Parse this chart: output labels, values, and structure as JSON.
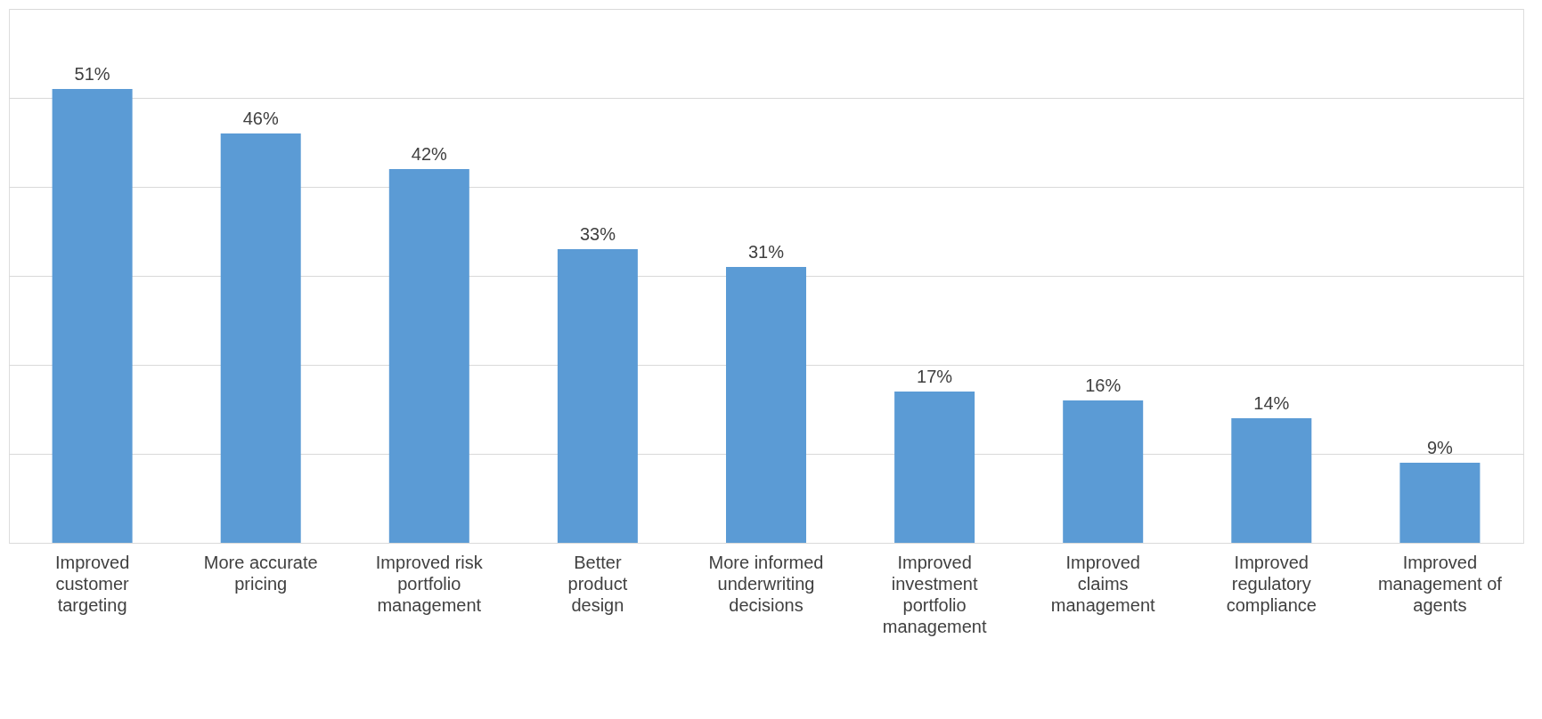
{
  "chart_data": {
    "type": "bar",
    "categories": [
      "Improved customer targeting",
      "More accurate pricing",
      "Improved risk portfolio management",
      "Better product design",
      "More informed underwriting decisions",
      "Improved investment portfolio management",
      "Improved claims management",
      "Improved regulatory compliance",
      "Improved management of agents"
    ],
    "values": [
      51,
      46,
      42,
      33,
      31,
      17,
      16,
      14,
      9
    ],
    "value_labels": [
      "51%",
      "46%",
      "42%",
      "33%",
      "31%",
      "17%",
      "16%",
      "14%",
      "9%"
    ],
    "color": "#5b9bd5",
    "ylim": [
      0,
      60
    ],
    "yticks": [
      {
        "value": 0,
        "label": null
      },
      {
        "value": 10,
        "label": null
      },
      {
        "value": 20,
        "label": null
      },
      {
        "value": 30,
        "label": null
      },
      {
        "value": 40,
        "label": null
      },
      {
        "value": 50,
        "label": null
      },
      {
        "value": 60,
        "label": null
      }
    ],
    "grid": "y",
    "tick_labels": "x"
  }
}
